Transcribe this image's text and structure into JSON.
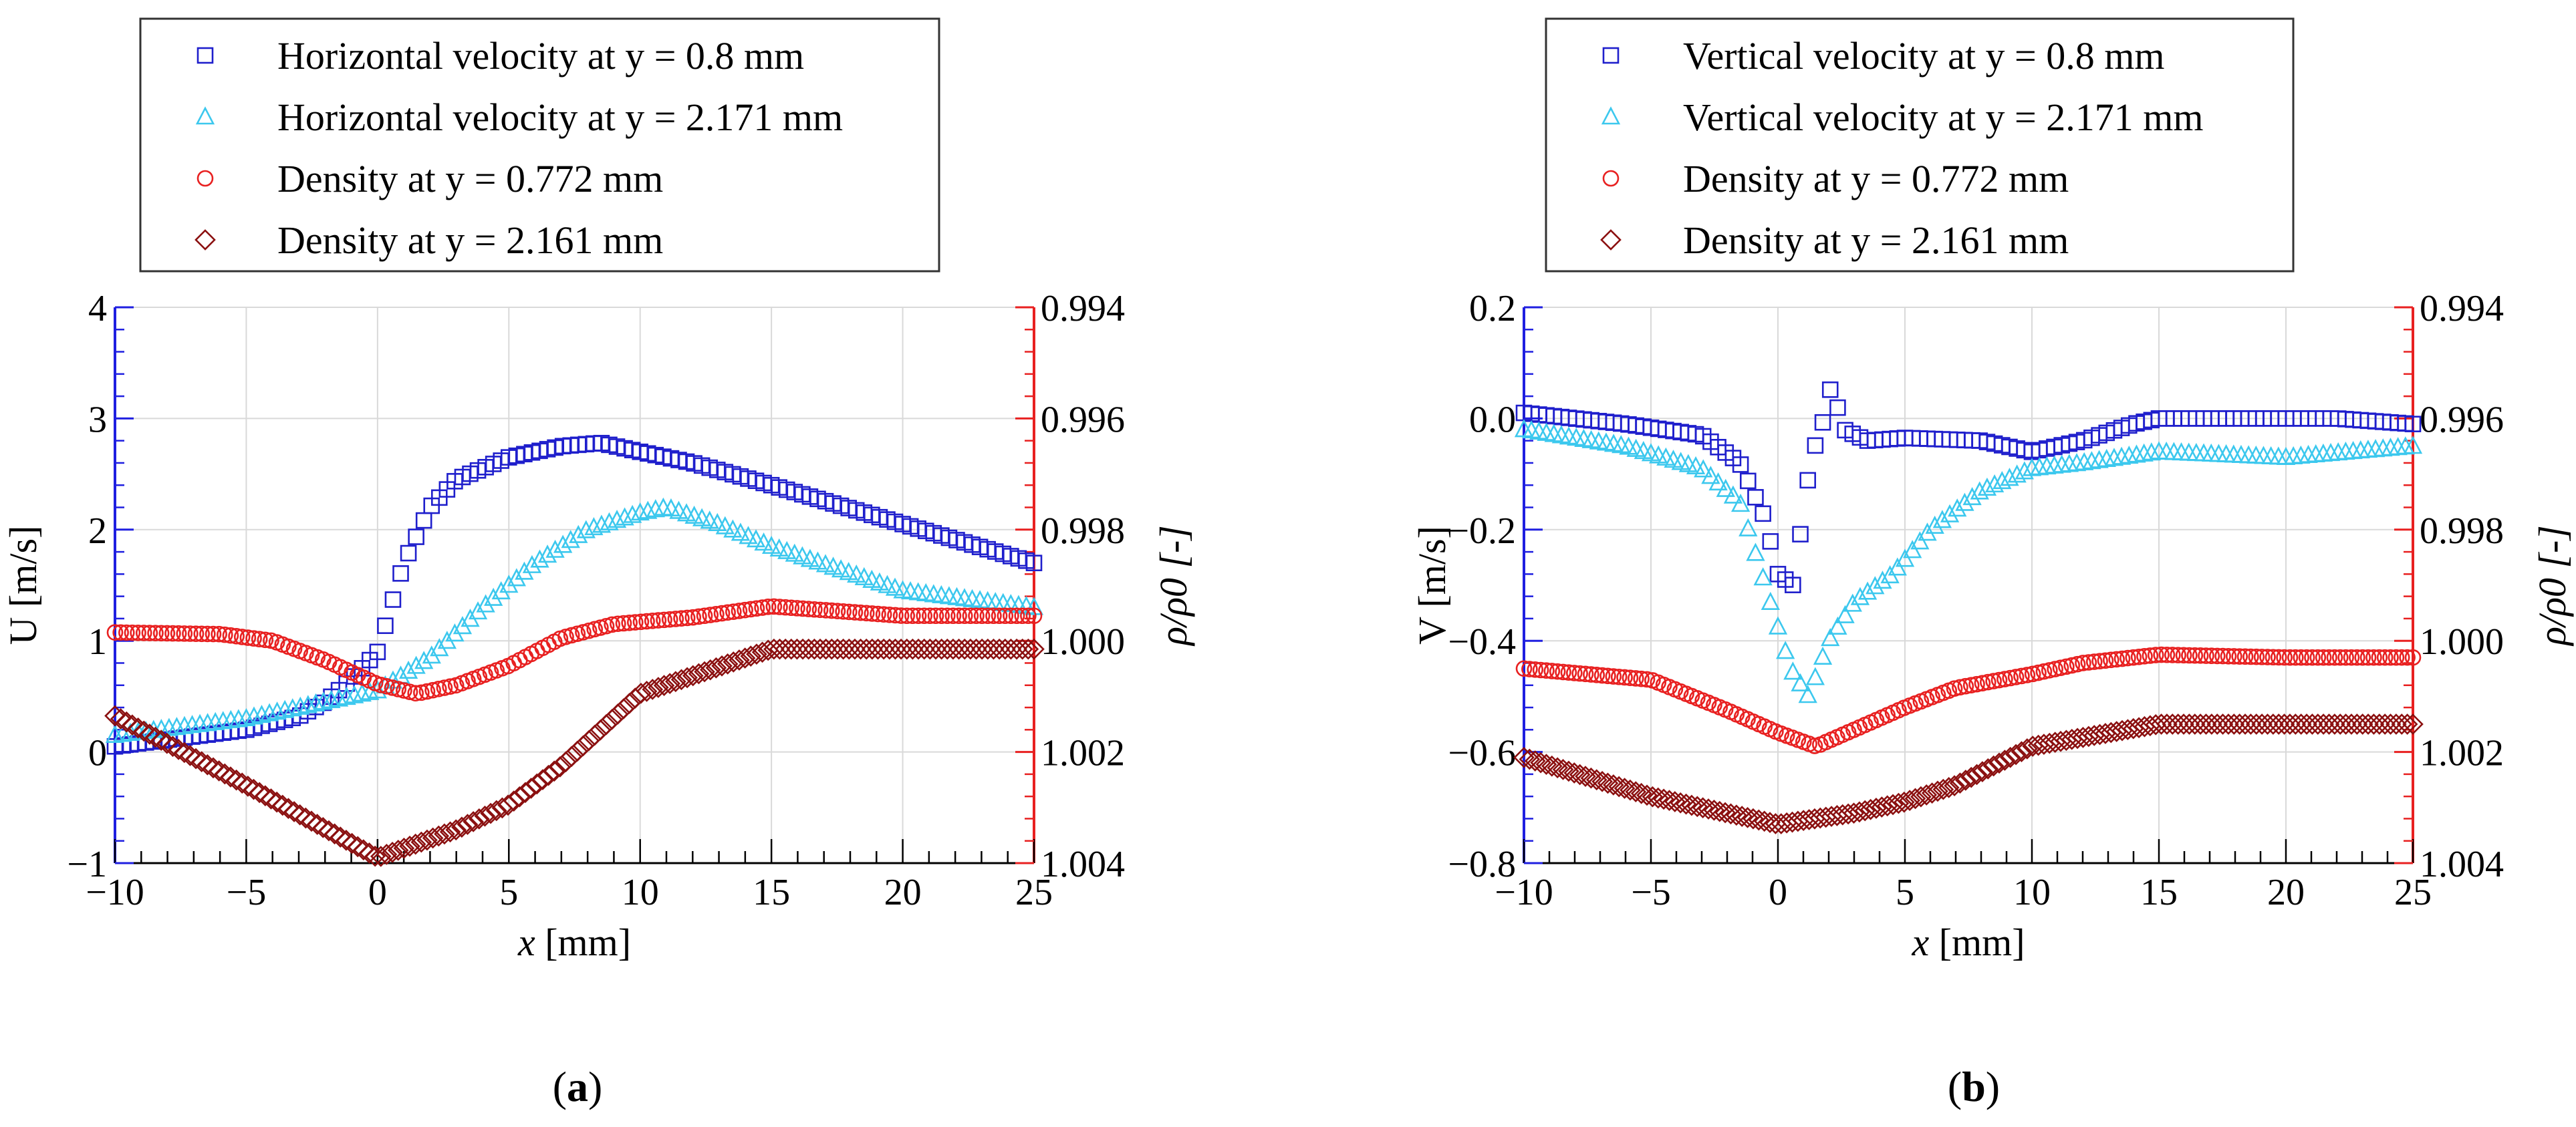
{
  "chart_data": [
    {
      "panel_label": "a",
      "type": "scatter",
      "xlabel": "x [mm]",
      "ylabel": "U [m/s]",
      "y2label": "ρ/ρ0 [-]",
      "xlim": [
        -10,
        25
      ],
      "ylim": [
        -1,
        4
      ],
      "y2lim": [
        1.004,
        0.994
      ],
      "xticks": [
        -10,
        -5,
        0,
        5,
        10,
        15,
        20,
        25
      ],
      "xtick_labels": [
        "−10",
        "−5",
        "0",
        "5",
        "10",
        "15",
        "20",
        "25"
      ],
      "yticks": [
        -1,
        0,
        1,
        2,
        3,
        4
      ],
      "ytick_labels": [
        "−1",
        "0",
        "1",
        "2",
        "3",
        "4"
      ],
      "y2ticks": [
        0.994,
        0.996,
        0.998,
        1.0,
        1.002,
        1.004
      ],
      "y2tick_labels": [
        "0.994",
        "0.996",
        "0.998",
        "1.000",
        "1.002",
        "1.004"
      ],
      "legend_position": "top",
      "grid": true,
      "series": [
        {
          "name": "Horizontal velocity at y = 0.8 mm",
          "marker": "square",
          "color": "#1f1fcc",
          "axis": "left",
          "n": 120,
          "x": [
            -10,
            -5,
            -3,
            -2,
            -1,
            0,
            0.5,
            1,
            1.5,
            2,
            3,
            5,
            7,
            8.5,
            10,
            12,
            15,
            20,
            25
          ],
          "y": [
            0.05,
            0.2,
            0.32,
            0.45,
            0.65,
            0.9,
            1.3,
            1.7,
            1.95,
            2.2,
            2.45,
            2.65,
            2.75,
            2.78,
            2.7,
            2.6,
            2.4,
            2.05,
            1.7
          ]
        },
        {
          "name": "Horizontal velocity at y = 2.171 mm",
          "marker": "triangle",
          "color": "#3cc8ee",
          "axis": "left",
          "n": 120,
          "x": [
            -10,
            -5,
            -2,
            0,
            2,
            4,
            6,
            8,
            10,
            11,
            13,
            15,
            20,
            25
          ],
          "y": [
            0.15,
            0.3,
            0.45,
            0.55,
            0.85,
            1.3,
            1.7,
            2.0,
            2.15,
            2.2,
            2.05,
            1.85,
            1.45,
            1.3
          ]
        },
        {
          "name": "Density at y = 0.772 mm",
          "marker": "circle",
          "color": "#e82020",
          "axis": "right",
          "n": 160,
          "x": [
            -10,
            -6,
            -4,
            -2,
            0,
            1.5,
            3,
            5,
            7,
            9,
            12,
            15,
            20,
            25
          ],
          "y": [
            0.99985,
            0.99988,
            1.0,
            1.00035,
            1.00078,
            1.00095,
            1.0008,
            1.00045,
            0.99995,
            0.9997,
            0.99958,
            0.99938,
            0.99955,
            0.99955
          ]
        },
        {
          "name": "Density at y = 2.161 mm",
          "marker": "diamond",
          "color": "#8b1010",
          "axis": "right",
          "n": 160,
          "x": [
            -10,
            -5,
            0,
            3,
            5,
            7,
            10,
            15,
            20,
            25
          ],
          "y": [
            1.00135,
            1.0026,
            1.0039,
            1.0034,
            1.00295,
            1.00225,
            1.00095,
            1.00015,
            1.00015,
            1.00015
          ]
        }
      ]
    },
    {
      "panel_label": "b",
      "type": "scatter",
      "xlabel": "x [mm]",
      "ylabel": "V [m/s]",
      "y2label": "ρ/ρ0 [-]",
      "xlim": [
        -10,
        25
      ],
      "ylim": [
        -0.8,
        0.2
      ],
      "y2lim": [
        1.004,
        0.994
      ],
      "xticks": [
        -10,
        -5,
        0,
        5,
        10,
        15,
        20,
        25
      ],
      "xtick_labels": [
        "−10",
        "−5",
        "0",
        "5",
        "10",
        "15",
        "20",
        "25"
      ],
      "yticks": [
        -0.8,
        -0.6,
        -0.4,
        -0.2,
        0.0,
        0.2
      ],
      "ytick_labels": [
        "−0.8",
        "−0.6",
        "−0.4",
        "−0.2",
        "0.0",
        "0.2"
      ],
      "y2ticks": [
        0.994,
        0.996,
        0.998,
        1.0,
        1.002,
        1.004
      ],
      "y2tick_labels": [
        "0.994",
        "0.996",
        "0.998",
        "1.000",
        "1.002",
        "1.004"
      ],
      "legend_position": "top",
      "grid": true,
      "series": [
        {
          "name": "Vertical velocity at y = 0.8 mm",
          "marker": "square",
          "color": "#1f1fcc",
          "axis": "left",
          "n": 120,
          "x": [
            -10,
            -6,
            -3,
            -1.5,
            -0.5,
            0,
            0.6,
            1,
            1.3,
            1.7,
            2.1,
            2.6,
            3.5,
            5,
            8,
            10,
            12,
            14,
            15,
            18,
            22,
            25
          ],
          "y": [
            0.01,
            -0.01,
            -0.03,
            -0.08,
            -0.18,
            -0.28,
            -0.3,
            -0.17,
            -0.07,
            -0.02,
            0.06,
            -0.02,
            -0.04,
            -0.035,
            -0.04,
            -0.06,
            -0.04,
            -0.01,
            0.0,
            0.0,
            0.0,
            -0.01
          ]
        },
        {
          "name": "Vertical velocity at y = 2.171 mm",
          "marker": "triangle",
          "color": "#3cc8ee",
          "axis": "left",
          "n": 120,
          "x": [
            -10,
            -6,
            -3,
            -1.5,
            -0.5,
            0.5,
            1.2,
            2,
            3,
            4.5,
            6,
            8,
            10,
            12,
            15,
            20,
            25
          ],
          "y": [
            -0.02,
            -0.05,
            -0.09,
            -0.15,
            -0.3,
            -0.45,
            -0.5,
            -0.4,
            -0.33,
            -0.28,
            -0.2,
            -0.13,
            -0.09,
            -0.08,
            -0.06,
            -0.07,
            -0.05
          ]
        },
        {
          "name": "Density at y = 0.772 mm",
          "marker": "circle",
          "color": "#e82020",
          "axis": "right",
          "n": 160,
          "x": [
            -10,
            -5,
            -2,
            0,
            1.5,
            3,
            5,
            7,
            10,
            12,
            15,
            20,
            25
          ],
          "y": [
            1.0005,
            1.0007,
            1.00125,
            1.00165,
            1.0019,
            1.0016,
            1.0012,
            1.00085,
            1.0006,
            1.0004,
            1.00025,
            1.0003,
            1.0003
          ]
        },
        {
          "name": "Density at y = 2.161 mm",
          "marker": "diamond",
          "color": "#8b1010",
          "axis": "right",
          "n": 160,
          "x": [
            -10,
            -5,
            0,
            3,
            5,
            7,
            10,
            15,
            20,
            25
          ],
          "y": [
            1.0021,
            1.0028,
            1.0033,
            1.0031,
            1.0029,
            1.0026,
            1.0019,
            1.0015,
            1.0015,
            1.0015
          ]
        }
      ]
    }
  ]
}
